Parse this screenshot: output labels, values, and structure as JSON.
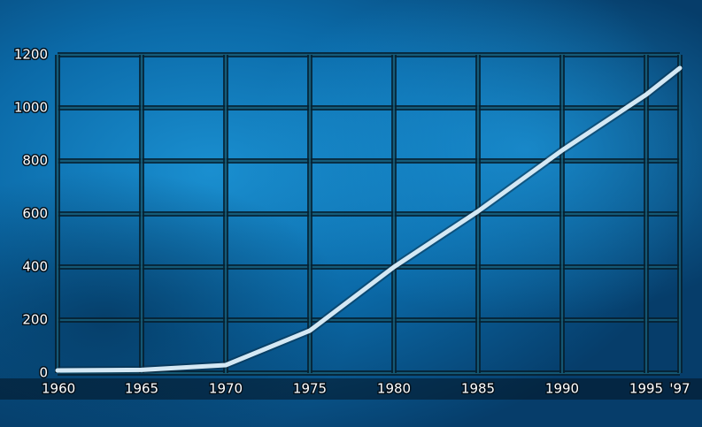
{
  "chart_data": {
    "type": "line",
    "x": [
      1960,
      1965,
      1970,
      1975,
      1980,
      1985,
      1990,
      1995,
      1997
    ],
    "values": [
      10,
      12,
      30,
      160,
      400,
      610,
      840,
      1050,
      1150
    ],
    "color": "#d4e8f4",
    "xlim": [
      1960,
      1997
    ],
    "xticks": [
      1960,
      1965,
      1970,
      1975,
      1980,
      1985,
      1990,
      1995,
      {
        "value": 1997,
        "label": "'97"
      }
    ],
    "ylim": [
      0,
      1200
    ],
    "yticks": [
      0,
      200,
      400,
      600,
      800,
      1000,
      1200
    ],
    "grid": true
  }
}
